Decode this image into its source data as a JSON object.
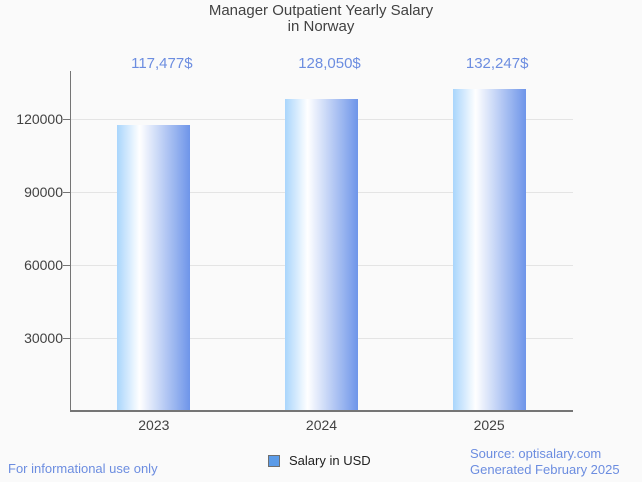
{
  "chart_data": {
    "type": "bar",
    "title": "Manager Outpatient Yearly Salary in Norway",
    "title_lines": [
      "Manager Outpatient Yearly Salary",
      "in Norway"
    ],
    "categories": [
      "2023",
      "2024",
      "2025"
    ],
    "values": [
      117477,
      128050,
      132247
    ],
    "value_labels": [
      "117,477$",
      "128,050$",
      "132,247$"
    ],
    "series": [
      {
        "name": "Salary in USD",
        "values": [
          117477,
          128050,
          132247
        ]
      }
    ],
    "xlabel": "",
    "ylabel": "",
    "yticks": [
      30000,
      60000,
      90000,
      120000
    ],
    "ytick_labels": [
      "30000",
      "60000",
      "90000",
      "120000"
    ],
    "ylim": [
      0,
      139726
    ],
    "grid": true,
    "legend": {
      "label": "Salary in USD",
      "position": "bottom"
    }
  },
  "footer": {
    "disclaimer": "For informational use only",
    "source": "Source: optisalary.com",
    "generated": "Generated February 2025"
  },
  "colors": {
    "background": "#FAFAFA",
    "text_dark": "#424242",
    "accent_text": "#6C8DE0",
    "grid": "#E4E4E4",
    "axis": "#757575",
    "bar_gradient_left": "#A9D5FC",
    "bar_gradient_mid": "#FFFFFF",
    "bar_gradient_right": "#6E95E9",
    "legend_swatch": "#5B9BE8",
    "legend_text": "#212121"
  }
}
